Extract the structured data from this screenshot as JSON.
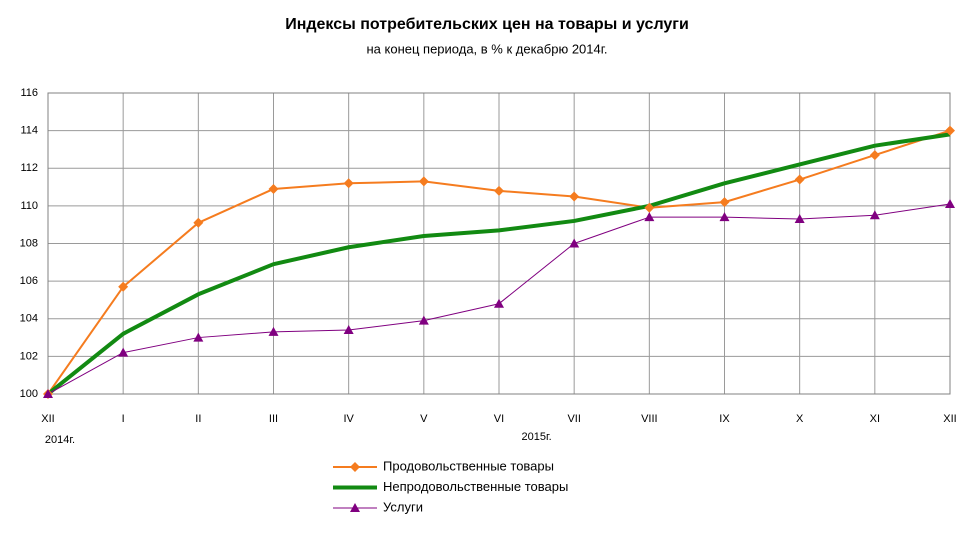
{
  "chart_data": {
    "type": "line",
    "title": "Индексы потребительских цен на товары и  услуги",
    "subtitle": "на конец периода, в % к декабрю 2014г.",
    "categories": [
      "XII",
      "I",
      "II",
      "III",
      "IV",
      "V",
      "VI",
      "VII",
      "VIII",
      "IX",
      "X",
      "XI",
      "XII"
    ],
    "annotations": [
      "2014г.",
      "2015г."
    ],
    "series": [
      {
        "name": "Продовольственные товары",
        "color": "#f57c1f",
        "marker": "diamond",
        "line_width": 2,
        "values": [
          100,
          105.7,
          109.1,
          110.9,
          111.2,
          111.3,
          110.8,
          110.5,
          109.9,
          110.2,
          111.4,
          112.7,
          114.0
        ]
      },
      {
        "name": "Непродовольственные товары",
        "color": "#128a12",
        "marker": "none",
        "line_width": 4,
        "values": [
          100,
          103.2,
          105.3,
          106.9,
          107.8,
          108.4,
          108.7,
          109.2,
          110.0,
          111.2,
          112.2,
          113.2,
          113.8
        ]
      },
      {
        "name": "Услуги",
        "color": "#800080",
        "marker": "triangle",
        "line_width": 1,
        "values": [
          100,
          102.2,
          103.0,
          103.3,
          103.4,
          103.9,
          104.8,
          108.0,
          109.4,
          109.4,
          109.3,
          109.5,
          110.1
        ]
      }
    ],
    "ylim": [
      100,
      116
    ],
    "yticks": [
      100,
      102,
      104,
      106,
      108,
      110,
      112,
      114,
      116
    ],
    "grid": true
  }
}
